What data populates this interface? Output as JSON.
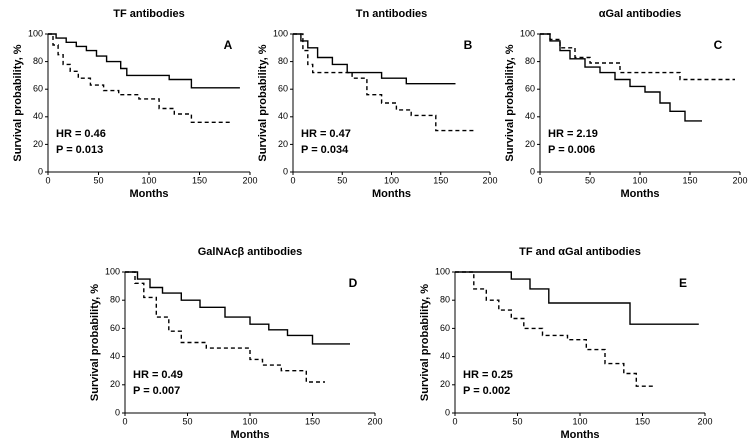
{
  "chart_data": [
    {
      "type": "line",
      "title": "TF antibodies",
      "panel_label": "A",
      "annotations": [
        "HR = 0.46",
        "P = 0.013"
      ],
      "xlabel": "Months",
      "ylabel": "Survival probability, %",
      "xlim": [
        0,
        200
      ],
      "ylim": [
        0,
        100
      ],
      "xticks": [
        0,
        50,
        100,
        150,
        200
      ],
      "yticks": [
        0,
        20,
        40,
        60,
        80,
        100
      ],
      "series": [
        {
          "style": "solid",
          "color": "#000000",
          "x": [
            0,
            8,
            8,
            18,
            18,
            28,
            28,
            38,
            38,
            48,
            48,
            58,
            58,
            72,
            72,
            78,
            78,
            120,
            120,
            142,
            142,
            190
          ],
          "values": [
            100,
            100,
            97,
            97,
            94,
            94,
            91,
            91,
            88,
            88,
            84,
            84,
            80,
            80,
            75,
            75,
            70,
            70,
            67,
            67,
            61,
            61
          ]
        },
        {
          "style": "dashed",
          "color": "#000000",
          "x": [
            0,
            5,
            5,
            10,
            10,
            15,
            15,
            22,
            22,
            30,
            30,
            42,
            42,
            55,
            55,
            70,
            70,
            90,
            90,
            110,
            110,
            125,
            125,
            142,
            142,
            180
          ],
          "values": [
            100,
            100,
            92,
            92,
            85,
            85,
            78,
            78,
            73,
            73,
            68,
            68,
            63,
            63,
            59,
            59,
            56,
            56,
            53,
            53,
            46,
            46,
            42,
            42,
            36,
            36
          ]
        }
      ]
    },
    {
      "type": "line",
      "title": "Tn antibodies",
      "panel_label": "B",
      "annotations": [
        "HR = 0.47",
        "P = 0.034"
      ],
      "xlabel": "Months",
      "ylabel": "Survival probability, %",
      "xlim": [
        0,
        200
      ],
      "ylim": [
        0,
        100
      ],
      "xticks": [
        0,
        50,
        100,
        150,
        200
      ],
      "yticks": [
        0,
        20,
        40,
        60,
        80,
        100
      ],
      "series": [
        {
          "style": "solid",
          "color": "#000000",
          "x": [
            0,
            8,
            8,
            15,
            15,
            25,
            25,
            40,
            40,
            55,
            55,
            90,
            90,
            115,
            115,
            165
          ],
          "values": [
            100,
            100,
            95,
            95,
            90,
            90,
            83,
            83,
            78,
            78,
            72,
            72,
            68,
            68,
            64,
            64
          ]
        },
        {
          "style": "dashed",
          "color": "#000000",
          "x": [
            0,
            10,
            10,
            15,
            15,
            20,
            20,
            60,
            60,
            75,
            75,
            90,
            90,
            105,
            105,
            120,
            120,
            145,
            145,
            185
          ],
          "values": [
            100,
            100,
            88,
            88,
            78,
            78,
            72,
            72,
            68,
            68,
            56,
            56,
            50,
            50,
            45,
            45,
            41,
            41,
            30,
            30
          ]
        }
      ]
    },
    {
      "type": "line",
      "title": "αGal antibodies",
      "panel_label": "C",
      "annotations": [
        "HR = 2.19",
        "P = 0.006"
      ],
      "xlabel": "Months",
      "ylabel": "Survival probability, %",
      "xlim": [
        0,
        200
      ],
      "ylim": [
        0,
        100
      ],
      "xticks": [
        0,
        50,
        100,
        150,
        200
      ],
      "yticks": [
        0,
        20,
        40,
        60,
        80,
        100
      ],
      "series": [
        {
          "style": "solid",
          "color": "#000000",
          "x": [
            0,
            10,
            10,
            20,
            20,
            30,
            30,
            45,
            45,
            60,
            60,
            75,
            75,
            90,
            90,
            105,
            105,
            120,
            120,
            130,
            130,
            145,
            145,
            162
          ],
          "values": [
            100,
            100,
            95,
            95,
            88,
            88,
            82,
            82,
            76,
            76,
            72,
            72,
            67,
            67,
            62,
            62,
            58,
            58,
            50,
            50,
            44,
            44,
            37,
            37
          ]
        },
        {
          "style": "dashed",
          "color": "#000000",
          "x": [
            0,
            10,
            10,
            20,
            20,
            35,
            35,
            50,
            50,
            80,
            80,
            140,
            140,
            195
          ],
          "values": [
            100,
            100,
            96,
            96,
            90,
            90,
            83,
            83,
            79,
            79,
            72,
            72,
            67,
            67
          ]
        }
      ]
    },
    {
      "type": "line",
      "title": "GalNAcβ antibodies",
      "panel_label": "D",
      "annotations": [
        "HR = 0.49",
        "P = 0.007"
      ],
      "xlabel": "Months",
      "ylabel": "Survival probability, %",
      "xlim": [
        0,
        200
      ],
      "ylim": [
        0,
        100
      ],
      "xticks": [
        0,
        50,
        100,
        150,
        200
      ],
      "yticks": [
        0,
        20,
        40,
        60,
        80,
        100
      ],
      "series": [
        {
          "style": "solid",
          "color": "#000000",
          "x": [
            0,
            10,
            10,
            20,
            20,
            30,
            30,
            45,
            45,
            60,
            60,
            80,
            80,
            100,
            100,
            115,
            115,
            130,
            130,
            150,
            150,
            180
          ],
          "values": [
            100,
            100,
            95,
            95,
            89,
            89,
            85,
            85,
            80,
            80,
            75,
            75,
            68,
            68,
            63,
            63,
            59,
            59,
            55,
            55,
            49,
            49
          ]
        },
        {
          "style": "dashed",
          "color": "#000000",
          "x": [
            0,
            8,
            8,
            15,
            15,
            25,
            25,
            35,
            35,
            45,
            45,
            65,
            65,
            100,
            100,
            110,
            110,
            125,
            125,
            145,
            145,
            160
          ],
          "values": [
            100,
            100,
            92,
            92,
            82,
            82,
            68,
            68,
            58,
            58,
            50,
            50,
            46,
            46,
            38,
            38,
            34,
            34,
            30,
            30,
            22,
            22
          ]
        }
      ]
    },
    {
      "type": "line",
      "title": "TF and αGal antibodies",
      "panel_label": "E",
      "annotations": [
        "HR = 0.25",
        "P = 0.002"
      ],
      "xlabel": "Months",
      "ylabel": "Survival probability, %",
      "xlim": [
        0,
        200
      ],
      "ylim": [
        0,
        100
      ],
      "xticks": [
        0,
        50,
        100,
        150,
        200
      ],
      "yticks": [
        0,
        20,
        40,
        60,
        80,
        100
      ],
      "series": [
        {
          "style": "solid",
          "color": "#000000",
          "x": [
            0,
            45,
            45,
            60,
            60,
            75,
            75,
            140,
            140,
            195
          ],
          "values": [
            100,
            100,
            95,
            95,
            88,
            88,
            78,
            78,
            63,
            63
          ]
        },
        {
          "style": "dashed",
          "color": "#000000",
          "x": [
            0,
            15,
            15,
            25,
            25,
            35,
            35,
            45,
            45,
            55,
            55,
            70,
            70,
            90,
            90,
            105,
            105,
            120,
            120,
            135,
            135,
            145,
            145,
            160
          ],
          "values": [
            100,
            100,
            88,
            88,
            80,
            80,
            73,
            73,
            67,
            67,
            60,
            60,
            55,
            55,
            52,
            52,
            45,
            45,
            35,
            35,
            28,
            28,
            19,
            19
          ]
        }
      ]
    }
  ]
}
